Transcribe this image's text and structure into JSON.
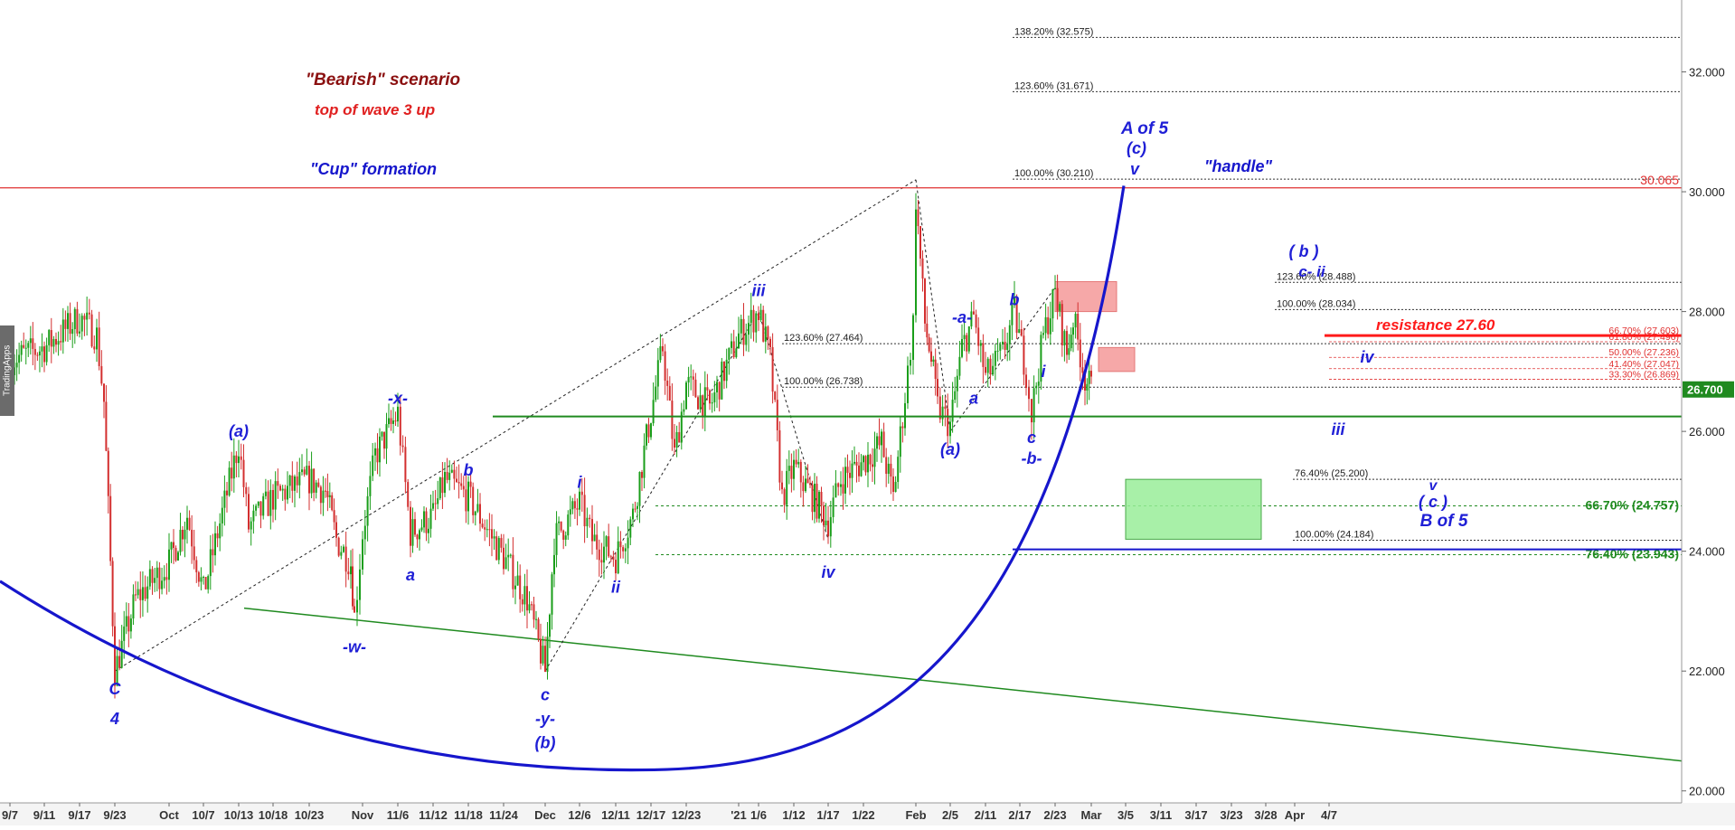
{
  "colors": {
    "candle_up": "#1a9e1a",
    "candle_down": "#d32f2f",
    "cup": "#1616cc",
    "green_line": "#1f8a1f",
    "red_line": "#e03030",
    "resistance": "#ff1a1a",
    "last_price_bg": "#1f8a1f",
    "pink_box": "#f59a9a",
    "green_box": "#99ee99",
    "annotation_blue": "#1f1fd6",
    "maroon": "#8b1010"
  },
  "watermark": "TradingApps",
  "chart_data": {
    "type": "candlestick",
    "title": "",
    "ylim": [
      19.8,
      33.2
    ],
    "y_ticks": [
      "20.000",
      "22.000",
      "24.000",
      "26.000",
      "28.000",
      "30.000",
      "32.000"
    ],
    "x_ticks": [
      "9/7",
      "9/11",
      "9/17",
      "9/23",
      "Oct",
      "10/7",
      "10/13",
      "10/18",
      "10/23",
      "Nov",
      "11/6",
      "11/12",
      "11/18",
      "11/24",
      "Dec",
      "12/6",
      "12/11",
      "12/17",
      "12/23",
      "'21",
      "1/6",
      "1/12",
      "1/17",
      "1/22",
      "Feb",
      "2/5",
      "2/11",
      "2/17",
      "2/23",
      "Mar",
      "3/5",
      "3/11",
      "3/17",
      "3/23",
      "3/28",
      "Apr",
      "4/7"
    ],
    "last_price": "26.700",
    "price_path": [
      [
        "9/7",
        27.2
      ],
      [
        "9/11",
        27.4
      ],
      [
        "9/17",
        27.9
      ],
      [
        "9/19",
        27.6
      ],
      [
        "9/20",
        26.5
      ],
      [
        "9/23",
        22.0
      ],
      [
        "9/26",
        23.2
      ],
      [
        "Oct",
        23.8
      ],
      [
        "10/4",
        24.6
      ],
      [
        "10/7",
        23.3
      ],
      [
        "10/13",
        25.8
      ],
      [
        "10/15",
        24.4
      ],
      [
        "10/18",
        24.9
      ],
      [
        "10/23",
        25.2
      ],
      [
        "10/26",
        25.0
      ],
      [
        "10/28",
        24.2
      ],
      [
        "10/31",
        23.8
      ],
      [
        "11/2",
        22.9
      ],
      [
        "Nov",
        24.3
      ],
      [
        "11/4",
        25.6
      ],
      [
        "11/6",
        26.3
      ],
      [
        "11/8",
        24.3
      ],
      [
        "11/12",
        24.6
      ],
      [
        "11/14",
        25.2
      ],
      [
        "11/18",
        24.9
      ],
      [
        "11/24",
        23.9
      ],
      [
        "11/28",
        23.2
      ],
      [
        "Dec",
        22.0
      ],
      [
        "12/2",
        24.2
      ],
      [
        "12/6",
        24.8
      ],
      [
        "12/8",
        24.2
      ],
      [
        "12/11",
        23.9
      ],
      [
        "12/14",
        24.6
      ],
      [
        "12/17",
        26.3
      ],
      [
        "12/19",
        27.4
      ],
      [
        "12/21",
        25.6
      ],
      [
        "12/23",
        26.8
      ],
      [
        "12/27",
        26.4
      ],
      [
        "'21",
        27.6
      ],
      [
        "1/6",
        28.0
      ],
      [
        "1/8",
        27.2
      ],
      [
        "1/10",
        24.9
      ],
      [
        "1/12",
        25.4
      ],
      [
        "1/14",
        25.1
      ],
      [
        "1/17",
        24.5
      ],
      [
        "1/19",
        25.2
      ],
      [
        "1/22",
        25.5
      ],
      [
        "1/25",
        25.8
      ],
      [
        "1/27",
        24.9
      ],
      [
        "1/29",
        26.6
      ],
      [
        "1/31",
        27.8
      ],
      [
        "Feb",
        29.9
      ],
      [
        "2/2",
        27.8
      ],
      [
        "2/3",
        27.2
      ],
      [
        "2/4",
        26.4
      ],
      [
        "2/5",
        26.1
      ],
      [
        "2/7",
        27.4
      ],
      [
        "2/9",
        27.9
      ],
      [
        "2/11",
        26.9
      ],
      [
        "2/14",
        27.3
      ],
      [
        "2/16",
        28.0
      ],
      [
        "2/18",
        27.0
      ],
      [
        "2/19",
        26.3
      ],
      [
        "2/21",
        27.6
      ],
      [
        "2/23",
        28.3
      ],
      [
        "2/25",
        27.3
      ],
      [
        "2/26",
        27.9
      ],
      [
        "2/28",
        26.9
      ],
      [
        "Mar",
        26.7
      ]
    ],
    "horizontal_levels": [
      {
        "label": "138.20% (32.575)",
        "value": 32.575,
        "style": "fib_upper"
      },
      {
        "label": "123.60% (31.671)",
        "value": 31.671,
        "style": "fib_upper"
      },
      {
        "label": "100.00% (30.210)",
        "value": 30.21,
        "style": "fib_upper"
      },
      {
        "label": "123.60% (27.464)",
        "value": 27.464,
        "style": "fib_mid"
      },
      {
        "label": "100.00% (26.738)",
        "value": 26.738,
        "style": "fib_mid"
      },
      {
        "label": "123.60% (28.488)",
        "value": 28.488,
        "style": "fib_box"
      },
      {
        "label": "100.00% (28.034)",
        "value": 28.034,
        "style": "fib_box"
      },
      {
        "label": "76.40% (25.200)",
        "value": 25.2,
        "style": "fib_lower"
      },
      {
        "label": "100.00% (24.184)",
        "value": 24.184,
        "style": "fib_lower"
      }
    ],
    "retracements": [
      {
        "label": "66.70% (27.603)",
        "value": 27.603
      },
      {
        "label": "61.80% (27.496)",
        "value": 27.496
      },
      {
        "label": "50.00% (27.236)",
        "value": 27.236
      },
      {
        "label": "41.40% (27.047)",
        "value": 27.047
      },
      {
        "label": "33.30% (26.869)",
        "value": 26.869
      }
    ],
    "green_levels": [
      {
        "label": "66.70% (24.757)",
        "value": 24.757
      },
      {
        "label": "76.40% (23.943)",
        "value": 23.943
      }
    ],
    "red_level": {
      "label": "30.065",
      "value": 30.065
    },
    "green_support": 26.25,
    "blue_support": 24.03,
    "resistance": {
      "label": "resistance 27.60",
      "value": 27.6
    },
    "zones": [
      {
        "name": "pink_b",
        "x": [
          "2/23",
          "3/3"
        ],
        "y": [
          28.0,
          28.5
        ]
      },
      {
        "name": "pink_iv",
        "x": [
          "3/1",
          "3/6"
        ],
        "y": [
          27.0,
          27.4
        ]
      },
      {
        "name": "green_target",
        "x": [
          "3/5",
          "3/27"
        ],
        "y": [
          24.2,
          25.2
        ]
      }
    ],
    "texts": {
      "bearish": "\"Bearish\" scenario",
      "top_wave3": "top of wave 3 up",
      "cup": "\"Cup\" formation",
      "handle": "\"handle\"",
      "a_of_5": "A of 5",
      "c_paren": "(c)",
      "v_top": "v",
      "b_paren": "( b )",
      "c_ii": "c- ii",
      "iv_box": "iv",
      "iii_low": "iii",
      "target_v": "v",
      "target_c": "( c )",
      "target_b5": "B of 5"
    },
    "wave_labels": [
      {
        "text": "C",
        "x": "9/23",
        "y": 21.7
      },
      {
        "text": "4",
        "x": "9/23",
        "y": 21.2
      },
      {
        "text": "(a)",
        "x": "10/13",
        "y": 26.0
      },
      {
        "text": "-x-",
        "x": "11/6",
        "y": 26.55
      },
      {
        "text": "b",
        "x": "11/18",
        "y": 25.35
      },
      {
        "text": "a",
        "x": "11/8",
        "y": 23.6
      },
      {
        "text": "-w-",
        "x": "11/2",
        "y": 22.4
      },
      {
        "text": "c",
        "x": "Dec",
        "y": 21.6
      },
      {
        "text": "-y-",
        "x": "Dec",
        "y": 21.2
      },
      {
        "text": "(b)",
        "x": "Dec",
        "y": 20.8
      },
      {
        "text": "i",
        "x": "12/6",
        "y": 25.15
      },
      {
        "text": "ii",
        "x": "12/11",
        "y": 23.4
      },
      {
        "text": "iii",
        "x": "1/6",
        "y": 28.35
      },
      {
        "text": "iv",
        "x": "1/17",
        "y": 23.65
      },
      {
        "text": "(a)",
        "x": "2/5",
        "y": 25.7
      },
      {
        "text": "-a-",
        "x": "2/7",
        "y": 27.9
      },
      {
        "text": "a",
        "x": "2/9",
        "y": 26.55
      },
      {
        "text": "b",
        "x": "2/16",
        "y": 28.2
      },
      {
        "text": "c",
        "x": "2/19",
        "y": 25.9
      },
      {
        "text": "-b-",
        "x": "2/19",
        "y": 25.55
      },
      {
        "text": "i",
        "x": "2/21",
        "y": 27.0
      }
    ]
  }
}
